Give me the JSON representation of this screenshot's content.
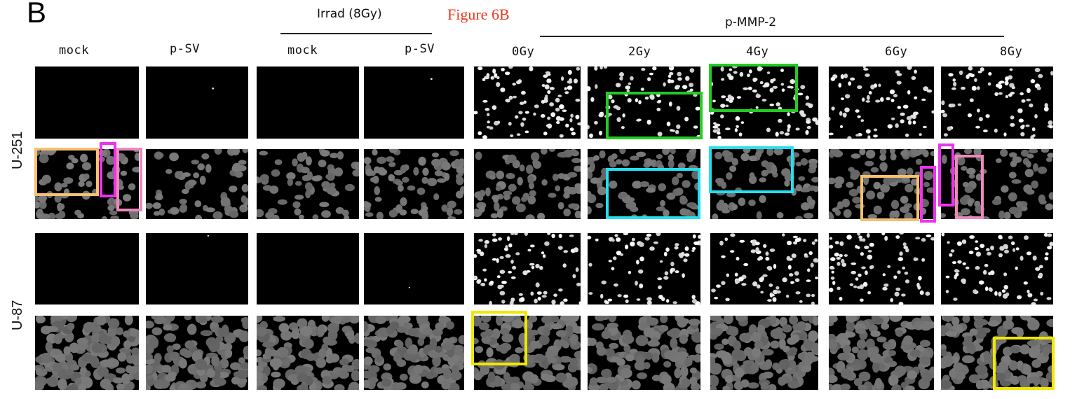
{
  "panel_letter": "B",
  "figure_label": "Figure 6B",
  "groups": {
    "irrad_title": "Irrad (8Gy)",
    "pmmp_title": "p-MMP-2"
  },
  "columns": [
    "mock",
    "p-SV",
    "mock",
    "p-SV",
    "0Gy",
    "2Gy",
    "4Gy",
    "6Gy",
    "8Gy"
  ],
  "rows": [
    "U-251",
    "U-87"
  ],
  "colors": {
    "green": "#22cc22",
    "cyan": "#22e0f0",
    "orange": "#f5c070",
    "magenta": "#ee33ee",
    "pink": "#ee88bb",
    "yellow": "#f0e800",
    "label_red": "#e8391f"
  }
}
